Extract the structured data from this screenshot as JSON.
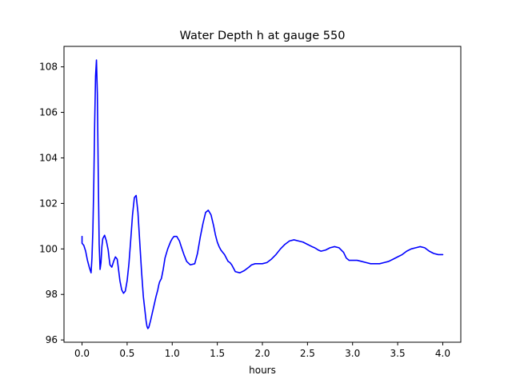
{
  "chart_data": {
    "type": "line",
    "title": "Water Depth h at gauge 550",
    "xlabel": "hours",
    "ylabel": "",
    "xlim": [
      -0.2,
      4.2
    ],
    "ylim": [
      95.9,
      108.9
    ],
    "grid": false,
    "xticks": [
      0.0,
      0.5,
      1.0,
      1.5,
      2.0,
      2.5,
      3.0,
      3.5,
      4.0
    ],
    "xtick_labels": [
      "0.0",
      "0.5",
      "1.0",
      "1.5",
      "2.0",
      "2.5",
      "3.0",
      "3.5",
      "4.0"
    ],
    "yticks": [
      96,
      98,
      100,
      102,
      104,
      106,
      108
    ],
    "ytick_labels": [
      "96",
      "98",
      "100",
      "102",
      "104",
      "106",
      "108"
    ],
    "series": [
      {
        "color": "#0000ff",
        "x": [
          0.0,
          0.0,
          0.02,
          0.04,
          0.06,
          0.08,
          0.1,
          0.11,
          0.12,
          0.13,
          0.14,
          0.15,
          0.16,
          0.17,
          0.18,
          0.19,
          0.2,
          0.21,
          0.22,
          0.23,
          0.25,
          0.27,
          0.29,
          0.3,
          0.31,
          0.33,
          0.35,
          0.37,
          0.39,
          0.4,
          0.42,
          0.44,
          0.46,
          0.48,
          0.5,
          0.52,
          0.54,
          0.56,
          0.58,
          0.6,
          0.62,
          0.64,
          0.66,
          0.68,
          0.7,
          0.71,
          0.72,
          0.73,
          0.74,
          0.76,
          0.78,
          0.8,
          0.82,
          0.84,
          0.85,
          0.86,
          0.88,
          0.9,
          0.92,
          0.95,
          0.98,
          1.0,
          1.02,
          1.05,
          1.08,
          1.1,
          1.13,
          1.16,
          1.2,
          1.25,
          1.28,
          1.31,
          1.34,
          1.37,
          1.4,
          1.43,
          1.46,
          1.48,
          1.5,
          1.52,
          1.54,
          1.56,
          1.58,
          1.6,
          1.62,
          1.64,
          1.66,
          1.68,
          1.7,
          1.75,
          1.8,
          1.85,
          1.88,
          1.92,
          1.96,
          2.0,
          2.05,
          2.1,
          2.15,
          2.2,
          2.25,
          2.3,
          2.35,
          2.4,
          2.45,
          2.5,
          2.55,
          2.58,
          2.62,
          2.65,
          2.7,
          2.75,
          2.8,
          2.85,
          2.9,
          2.93,
          2.96,
          3.0,
          3.05,
          3.1,
          3.15,
          3.2,
          3.25,
          3.3,
          3.35,
          3.4,
          3.45,
          3.5,
          3.55,
          3.6,
          3.65,
          3.7,
          3.75,
          3.8,
          3.85,
          3.9,
          3.95,
          4.0
        ],
        "y": [
          100.55,
          100.25,
          100.15,
          99.9,
          99.5,
          99.2,
          98.95,
          99.6,
          100.8,
          102.8,
          105.5,
          107.6,
          108.3,
          106.8,
          103.2,
          100.2,
          99.1,
          99.4,
          100.1,
          100.45,
          100.6,
          100.35,
          99.95,
          99.6,
          99.3,
          99.2,
          99.45,
          99.65,
          99.55,
          99.25,
          98.6,
          98.2,
          98.05,
          98.15,
          98.6,
          99.35,
          100.4,
          101.5,
          102.25,
          102.35,
          101.6,
          100.3,
          99.0,
          97.9,
          97.2,
          96.85,
          96.6,
          96.5,
          96.55,
          96.85,
          97.2,
          97.55,
          97.9,
          98.2,
          98.4,
          98.55,
          98.7,
          99.1,
          99.6,
          100.0,
          100.3,
          100.45,
          100.55,
          100.55,
          100.35,
          100.1,
          99.75,
          99.45,
          99.3,
          99.35,
          99.8,
          100.5,
          101.1,
          101.6,
          101.7,
          101.5,
          101.0,
          100.6,
          100.3,
          100.1,
          99.95,
          99.85,
          99.75,
          99.6,
          99.45,
          99.4,
          99.3,
          99.15,
          99.0,
          98.95,
          99.05,
          99.2,
          99.3,
          99.35,
          99.35,
          99.35,
          99.4,
          99.55,
          99.75,
          100.0,
          100.2,
          100.35,
          100.4,
          100.35,
          100.3,
          100.2,
          100.1,
          100.05,
          99.95,
          99.9,
          99.95,
          100.05,
          100.1,
          100.05,
          99.85,
          99.6,
          99.5,
          99.5,
          99.5,
          99.45,
          99.4,
          99.35,
          99.35,
          99.35,
          99.4,
          99.45,
          99.55,
          99.65,
          99.75,
          99.9,
          100.0,
          100.05,
          100.1,
          100.05,
          99.9,
          99.8,
          99.75,
          99.75
        ]
      }
    ]
  }
}
